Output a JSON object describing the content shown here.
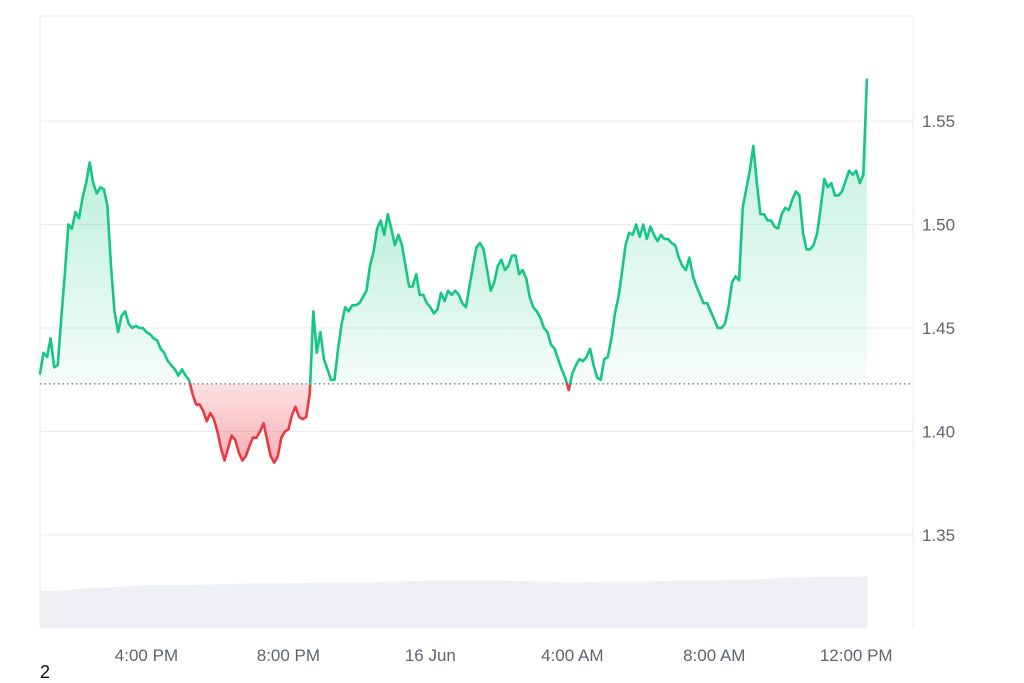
{
  "chart_data": {
    "type": "area",
    "title": "",
    "xlabel": "",
    "ylabel": "",
    "baseline": 1.423,
    "ylim": [
      1.3,
      1.6
    ],
    "yticks": [
      1.35,
      1.4,
      1.45,
      1.5,
      1.55
    ],
    "ytick_labels": [
      "1.35",
      "1.40",
      "1.45",
      "1.50",
      "1.55"
    ],
    "xlim": [
      0,
      24.6
    ],
    "xticks": [
      {
        "x": 3,
        "label": "4:00 PM"
      },
      {
        "x": 7,
        "label": "8:00 PM"
      },
      {
        "x": 11,
        "label": "16 Jun"
      },
      {
        "x": 15,
        "label": "4:00 AM"
      },
      {
        "x": 19,
        "label": "8:00 AM"
      },
      {
        "x": 23,
        "label": "12:00 PM"
      }
    ],
    "grid": true,
    "colors": {
      "above": "#16c784",
      "below": "#ea3943",
      "grid": "#e9ecf1",
      "volume": "#eef0f4",
      "baseline": "#6b7180"
    },
    "series": [
      {
        "values": [
          [
            0.0,
            1.428
          ],
          [
            0.1,
            1.438
          ],
          [
            0.2,
            1.436
          ],
          [
            0.3,
            1.445
          ],
          [
            0.4,
            1.431
          ],
          [
            0.5,
            1.432
          ],
          [
            0.6,
            1.455
          ],
          [
            0.7,
            1.476
          ],
          [
            0.8,
            1.5
          ],
          [
            0.9,
            1.498
          ],
          [
            1.0,
            1.506
          ],
          [
            1.1,
            1.503
          ],
          [
            1.2,
            1.513
          ],
          [
            1.3,
            1.52
          ],
          [
            1.4,
            1.53
          ],
          [
            1.5,
            1.52
          ],
          [
            1.6,
            1.515
          ],
          [
            1.7,
            1.518
          ],
          [
            1.8,
            1.517
          ],
          [
            1.9,
            1.509
          ],
          [
            2.0,
            1.48
          ],
          [
            2.1,
            1.458
          ],
          [
            2.2,
            1.448
          ],
          [
            2.3,
            1.456
          ],
          [
            2.4,
            1.458
          ],
          [
            2.5,
            1.452
          ],
          [
            2.6,
            1.45
          ],
          [
            2.7,
            1.451
          ],
          [
            2.8,
            1.45
          ],
          [
            2.9,
            1.45
          ],
          [
            3.0,
            1.448
          ],
          [
            3.1,
            1.447
          ],
          [
            3.2,
            1.445
          ],
          [
            3.3,
            1.444
          ],
          [
            3.4,
            1.44
          ],
          [
            3.5,
            1.438
          ],
          [
            3.6,
            1.434
          ],
          [
            3.7,
            1.432
          ],
          [
            3.8,
            1.43
          ],
          [
            3.9,
            1.427
          ],
          [
            4.0,
            1.43
          ],
          [
            4.1,
            1.427
          ],
          [
            4.2,
            1.425
          ],
          [
            4.3,
            1.418
          ],
          [
            4.4,
            1.413
          ],
          [
            4.5,
            1.413
          ],
          [
            4.6,
            1.41
          ],
          [
            4.7,
            1.405
          ],
          [
            4.8,
            1.409
          ],
          [
            4.9,
            1.406
          ],
          [
            5.0,
            1.4
          ],
          [
            5.1,
            1.392
          ],
          [
            5.2,
            1.386
          ],
          [
            5.3,
            1.392
          ],
          [
            5.4,
            1.398
          ],
          [
            5.5,
            1.396
          ],
          [
            5.6,
            1.39
          ],
          [
            5.7,
            1.386
          ],
          [
            5.8,
            1.388
          ],
          [
            5.9,
            1.393
          ],
          [
            6.0,
            1.397
          ],
          [
            6.1,
            1.397
          ],
          [
            6.2,
            1.4
          ],
          [
            6.3,
            1.404
          ],
          [
            6.4,
            1.396
          ],
          [
            6.5,
            1.388
          ],
          [
            6.6,
            1.385
          ],
          [
            6.7,
            1.388
          ],
          [
            6.8,
            1.397
          ],
          [
            6.9,
            1.4
          ],
          [
            7.0,
            1.401
          ],
          [
            7.1,
            1.408
          ],
          [
            7.2,
            1.412
          ],
          [
            7.3,
            1.407
          ],
          [
            7.4,
            1.406
          ],
          [
            7.5,
            1.407
          ],
          [
            7.6,
            1.418
          ],
          [
            7.7,
            1.458
          ],
          [
            7.8,
            1.438
          ],
          [
            7.9,
            1.448
          ],
          [
            8.0,
            1.435
          ],
          [
            8.1,
            1.43
          ],
          [
            8.2,
            1.425
          ],
          [
            8.3,
            1.425
          ],
          [
            8.4,
            1.44
          ],
          [
            8.5,
            1.452
          ],
          [
            8.6,
            1.46
          ],
          [
            8.7,
            1.458
          ],
          [
            8.8,
            1.461
          ],
          [
            8.9,
            1.461
          ],
          [
            9.0,
            1.462
          ],
          [
            9.1,
            1.465
          ],
          [
            9.2,
            1.468
          ],
          [
            9.3,
            1.48
          ],
          [
            9.4,
            1.487
          ],
          [
            9.5,
            1.498
          ],
          [
            9.6,
            1.502
          ],
          [
            9.7,
            1.495
          ],
          [
            9.8,
            1.505
          ],
          [
            9.9,
            1.498
          ],
          [
            10.0,
            1.49
          ],
          [
            10.1,
            1.495
          ],
          [
            10.2,
            1.49
          ],
          [
            10.3,
            1.48
          ],
          [
            10.4,
            1.47
          ],
          [
            10.5,
            1.47
          ],
          [
            10.6,
            1.476
          ],
          [
            10.7,
            1.466
          ],
          [
            10.8,
            1.466
          ],
          [
            10.9,
            1.462
          ],
          [
            11.0,
            1.46
          ],
          [
            11.1,
            1.457
          ],
          [
            11.2,
            1.459
          ],
          [
            11.3,
            1.467
          ],
          [
            11.4,
            1.463
          ],
          [
            11.5,
            1.468
          ],
          [
            11.6,
            1.466
          ],
          [
            11.7,
            1.468
          ],
          [
            11.8,
            1.466
          ],
          [
            11.9,
            1.462
          ],
          [
            12.0,
            1.46
          ],
          [
            12.1,
            1.47
          ],
          [
            12.2,
            1.48
          ],
          [
            12.3,
            1.489
          ],
          [
            12.4,
            1.491
          ],
          [
            12.5,
            1.488
          ],
          [
            12.6,
            1.478
          ],
          [
            12.7,
            1.468
          ],
          [
            12.8,
            1.472
          ],
          [
            12.9,
            1.48
          ],
          [
            13.0,
            1.483
          ],
          [
            13.1,
            1.478
          ],
          [
            13.2,
            1.48
          ],
          [
            13.3,
            1.485
          ],
          [
            13.4,
            1.485
          ],
          [
            13.5,
            1.476
          ],
          [
            13.6,
            1.478
          ],
          [
            13.7,
            1.474
          ],
          [
            13.8,
            1.465
          ],
          [
            13.9,
            1.46
          ],
          [
            14.0,
            1.458
          ],
          [
            14.1,
            1.455
          ],
          [
            14.2,
            1.45
          ],
          [
            14.3,
            1.448
          ],
          [
            14.4,
            1.442
          ],
          [
            14.5,
            1.44
          ],
          [
            14.6,
            1.435
          ],
          [
            14.7,
            1.43
          ],
          [
            14.8,
            1.426
          ],
          [
            14.9,
            1.42
          ],
          [
            15.0,
            1.428
          ],
          [
            15.1,
            1.432
          ],
          [
            15.2,
            1.435
          ],
          [
            15.3,
            1.434
          ],
          [
            15.4,
            1.436
          ],
          [
            15.5,
            1.44
          ],
          [
            15.6,
            1.432
          ],
          [
            15.7,
            1.426
          ],
          [
            15.8,
            1.425
          ],
          [
            15.9,
            1.435
          ],
          [
            16.0,
            1.436
          ],
          [
            16.1,
            1.445
          ],
          [
            16.2,
            1.457
          ],
          [
            16.3,
            1.465
          ],
          [
            16.4,
            1.477
          ],
          [
            16.5,
            1.49
          ],
          [
            16.6,
            1.496
          ],
          [
            16.7,
            1.495
          ],
          [
            16.8,
            1.5
          ],
          [
            16.9,
            1.494
          ],
          [
            17.0,
            1.5
          ],
          [
            17.1,
            1.493
          ],
          [
            17.2,
            1.499
          ],
          [
            17.3,
            1.495
          ],
          [
            17.4,
            1.492
          ],
          [
            17.5,
            1.495
          ],
          [
            17.6,
            1.493
          ],
          [
            17.7,
            1.493
          ],
          [
            17.8,
            1.491
          ],
          [
            17.9,
            1.49
          ],
          [
            18.0,
            1.484
          ],
          [
            18.1,
            1.48
          ],
          [
            18.2,
            1.478
          ],
          [
            18.3,
            1.484
          ],
          [
            18.4,
            1.475
          ],
          [
            18.5,
            1.47
          ],
          [
            18.6,
            1.466
          ],
          [
            18.7,
            1.462
          ],
          [
            18.8,
            1.462
          ],
          [
            18.9,
            1.458
          ],
          [
            19.0,
            1.454
          ],
          [
            19.1,
            1.45
          ],
          [
            19.2,
            1.45
          ],
          [
            19.3,
            1.452
          ],
          [
            19.4,
            1.46
          ],
          [
            19.5,
            1.472
          ],
          [
            19.6,
            1.475
          ],
          [
            19.7,
            1.473
          ],
          [
            19.8,
            1.508
          ],
          [
            19.9,
            1.517
          ],
          [
            20.0,
            1.526
          ],
          [
            20.1,
            1.538
          ],
          [
            20.2,
            1.52
          ],
          [
            20.3,
            1.505
          ],
          [
            20.4,
            1.505
          ],
          [
            20.5,
            1.502
          ],
          [
            20.6,
            1.502
          ],
          [
            20.7,
            1.499
          ],
          [
            20.8,
            1.498
          ],
          [
            20.9,
            1.505
          ],
          [
            21.0,
            1.508
          ],
          [
            21.1,
            1.507
          ],
          [
            21.2,
            1.512
          ],
          [
            21.3,
            1.516
          ],
          [
            21.4,
            1.514
          ],
          [
            21.5,
            1.496
          ],
          [
            21.6,
            1.488
          ],
          [
            21.7,
            1.488
          ],
          [
            21.8,
            1.49
          ],
          [
            21.9,
            1.496
          ],
          [
            22.0,
            1.508
          ],
          [
            22.1,
            1.522
          ],
          [
            22.2,
            1.518
          ],
          [
            22.3,
            1.52
          ],
          [
            22.4,
            1.514
          ],
          [
            22.5,
            1.514
          ],
          [
            22.6,
            1.516
          ],
          [
            22.7,
            1.521
          ],
          [
            22.8,
            1.526
          ],
          [
            22.9,
            1.524
          ],
          [
            23.0,
            1.526
          ],
          [
            23.1,
            1.52
          ],
          [
            23.2,
            1.524
          ],
          [
            23.3,
            1.57
          ]
        ]
      }
    ],
    "volume": {
      "values": [
        [
          0.0,
          0.4
        ],
        [
          0.5,
          0.4
        ],
        [
          1.0,
          0.42
        ],
        [
          2.0,
          0.44
        ],
        [
          3.0,
          0.46
        ],
        [
          4.0,
          0.46
        ],
        [
          5.0,
          0.47
        ],
        [
          6.0,
          0.48
        ],
        [
          7.0,
          0.48
        ],
        [
          8.0,
          0.49
        ],
        [
          9.0,
          0.49
        ],
        [
          10.0,
          0.5
        ],
        [
          11.0,
          0.51
        ],
        [
          12.0,
          0.51
        ],
        [
          13.0,
          0.51
        ],
        [
          14.0,
          0.5
        ],
        [
          15.0,
          0.49
        ],
        [
          16.0,
          0.5
        ],
        [
          17.0,
          0.5
        ],
        [
          18.0,
          0.51
        ],
        [
          19.0,
          0.51
        ],
        [
          20.0,
          0.52
        ],
        [
          21.0,
          0.54
        ],
        [
          22.0,
          0.55
        ],
        [
          23.0,
          0.55
        ],
        [
          23.3,
          0.56
        ]
      ]
    }
  },
  "footnote": "2"
}
